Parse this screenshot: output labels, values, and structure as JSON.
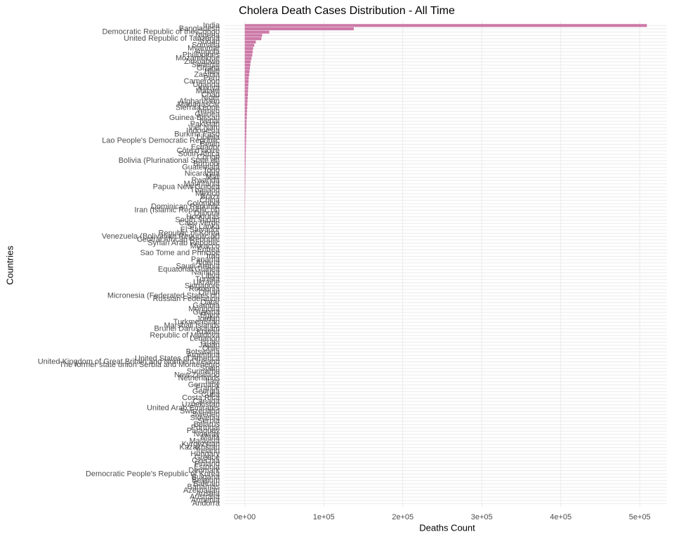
{
  "chart_data": {
    "type": "hbar",
    "title": "Cholera Death Cases Distribution - All Time",
    "x_label": "Deaths Count",
    "y_label": "Countries",
    "color": "#cc79a7",
    "grid": true,
    "xlim": [
      -25450,
      534450
    ],
    "xticks": [
      {
        "value": 0,
        "label": "0e+00"
      },
      {
        "value": 100000,
        "label": "1e+05"
      },
      {
        "value": 200000,
        "label": "2e+05"
      },
      {
        "value": 300000,
        "label": "3e+05"
      },
      {
        "value": 400000,
        "label": "4e+05"
      },
      {
        "value": 500000,
        "label": "5e+05"
      }
    ],
    "categories": [
      "India",
      "Bangladesh",
      "Democratic Republic of the Congo",
      "Nigeria",
      "United Republic of Tanzania",
      "Sudan",
      "Somalia",
      "Myanmar",
      "Angola",
      "Philippines",
      "Mozambique",
      "Zimbabwe",
      "Senegal",
      "Ghana",
      "Haiti",
      "Zambia",
      "Peru",
      "Cameroon",
      "Uganda",
      "Kenya",
      "Malawi",
      "Chad",
      "Niger",
      "Afghanistan",
      "Madagascar",
      "Sierra Leone",
      "Yemen",
      "Guinea",
      "Guinea-Bissau",
      "Nepal",
      "Pakistan",
      "Viet Nam",
      "Indonesia",
      "Burkina Faso",
      "Liberia",
      "Lao People's Democratic Republic",
      "Benin",
      "Ecuador",
      "Côte d'Ivoire",
      "South Africa",
      "Congo",
      "Bolivia (Plurinational State of)",
      "Burundi",
      "Guatemala",
      "Togo",
      "Nicaragua",
      "Mali",
      "Rwanda",
      "Mauritania",
      "Papua New Guinea",
      "Thailand",
      "Mexico",
      "Brazil",
      "China",
      "Colombia",
      "Dominican Republic",
      "Iran (Islamic Republic of)",
      "Djibouti",
      "Honduras",
      "South Sudan",
      "Cabo Verde",
      "Sri Lanka",
      "El Salvador",
      "Republic of Korea",
      "Venezuela (Bolivarian Republic of)",
      "Central African Republic",
      "Syrian Arab Republic",
      "Morocco",
      "Eritrea",
      "Sao Tome and Principe",
      "Iraq",
      "Panama",
      "Algeria",
      "Saudi Arabia",
      "Equatorial Guinea",
      "Namibia",
      "Libya",
      "Tunisia",
      "Ukraine",
      "Singapore",
      "Romania",
      "Oman",
      "Micronesia (Federated States of)",
      "Russian Federation",
      "Qatar",
      "Gambia",
      "Mongolia",
      "Guyana",
      "Egypt",
      "Jordan",
      "Turkmenistan",
      "Marshall Islands",
      "Brunei Darussalam",
      "Kuwait",
      "Republic of Moldova",
      "Lebanon",
      "Israel",
      "Japan",
      "Chile",
      "Botswana",
      "Argentina",
      "United States of America",
      "United Kingdom of Great Britain and Northern Ireland",
      "The former state union Serbia and Montenegro",
      "Spain",
      "Suriname",
      "New Zealand",
      "Netherlands",
      "Italy",
      "Germany",
      "France",
      "Georgia",
      "Cuba",
      "Costa Rica",
      "Canada",
      "Uzbekistan",
      "United Arab Emirates",
      "Switzerland",
      "Sweden",
      "Slovenia",
      "Serbia",
      "Belarus",
      "Portugal",
      "Paraguay",
      "Norway",
      "Malta",
      "Malaysia",
      "Kyrgyzstan",
      "Kazakhstan",
      "Ireland",
      "Hungary",
      "Greece",
      "Czechia",
      "Finland",
      "Estonia",
      "Denmark",
      "Democratic People's Republic of Korea",
      "Bulgaria",
      "Belgium",
      "Bahrain",
      "Bahamas",
      "Azerbaijan",
      "Austria",
      "Australia",
      "Armenia",
      "Andorra"
    ],
    "values": [
      509000,
      138000,
      31000,
      22000,
      21000,
      14000,
      12000,
      10500,
      10000,
      9500,
      8500,
      7500,
      7000,
      6500,
      6000,
      5500,
      5000,
      4800,
      4500,
      4300,
      4100,
      3900,
      3700,
      3500,
      3300,
      3100,
      2900,
      2700,
      2500,
      2300,
      2200,
      2100,
      2000,
      1900,
      1800,
      1700,
      1600,
      1500,
      1400,
      1300,
      1200,
      1100,
      1000,
      950,
      900,
      850,
      800,
      750,
      700,
      650,
      600,
      550,
      500,
      450,
      400,
      350,
      300,
      250,
      200,
      180,
      160,
      150,
      140,
      130,
      120,
      110,
      100,
      95,
      90,
      85,
      80,
      75,
      70,
      65,
      60,
      55,
      50,
      45,
      40,
      38,
      36,
      34,
      32,
      30,
      28,
      26,
      24,
      22,
      20,
      19,
      18,
      17,
      16,
      15,
      14,
      13,
      12,
      11,
      10,
      9,
      8,
      7,
      6,
      6,
      5,
      5,
      4,
      4,
      3,
      3,
      3,
      2,
      2,
      2,
      2,
      1,
      1,
      1,
      1,
      1,
      1,
      1,
      1,
      1,
      1,
      1,
      1,
      1,
      1,
      1,
      1,
      1,
      0,
      0,
      0,
      0,
      0,
      0,
      0,
      0,
      0,
      0,
      0,
      0,
      0,
      0
    ]
  }
}
